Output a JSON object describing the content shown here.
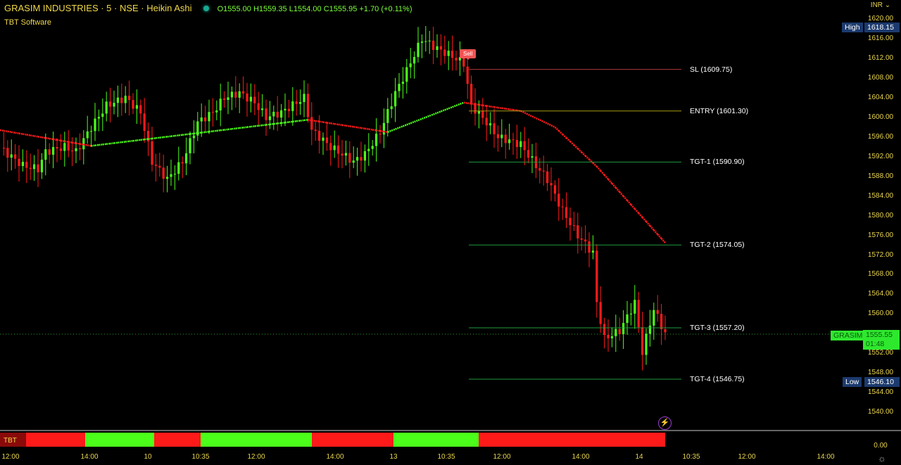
{
  "header": {
    "title": "GRASIM INDUSTRIES · 5 · NSE · Heikin Ashi",
    "open": "O1555.00",
    "high": "H1559.35",
    "low": "L1554.00",
    "close": "C1555.95",
    "change": "+1.70 (+0.11%)",
    "subtitle": "TBT Software"
  },
  "price_axis": {
    "currency": "INR ⌄",
    "ticks": [
      "1620.00",
      "1616.00",
      "1612.00",
      "1608.00",
      "1604.00",
      "1600.00",
      "1596.00",
      "1592.00",
      "1588.00",
      "1584.00",
      "1580.00",
      "1576.00",
      "1572.00",
      "1568.00",
      "1564.00",
      "1560.00",
      "1552.00",
      "1548.00",
      "1544.00",
      "1540.00"
    ],
    "high_label": "High",
    "high_value": "1618.15",
    "low_label": "Low",
    "low_value": "1546.10",
    "symbol_label": "GRASIM",
    "last_price": "1555.55",
    "countdown": "01:48",
    "indicator_value": "0.00"
  },
  "signal": {
    "label": "Sell"
  },
  "levels": [
    {
      "label": "SL (1609.75)",
      "price": 1609.75,
      "color": "#b03a3a"
    },
    {
      "label": "ENTRY (1601.30)",
      "price": 1601.3,
      "color": "#a89a10"
    },
    {
      "label": "TGT-1 (1590.90)",
      "price": 1590.9,
      "color": "#1f9a3e"
    },
    {
      "label": "TGT-2 (1574.05)",
      "price": 1574.05,
      "color": "#1f9a3e"
    },
    {
      "label": "TGT-3 (1557.20)",
      "price": 1557.2,
      "color": "#1f9a3e"
    },
    {
      "label": "TGT-4 (1546.75)",
      "price": 1546.75,
      "color": "#1f9a3e"
    }
  ],
  "time_axis": [
    "12:00",
    "14:00",
    "10",
    "10:35",
    "12:00",
    "14:00",
    "13",
    "10:35",
    "12:00",
    "14:00",
    "14",
    "10:35",
    "12:00",
    "14:00"
  ],
  "indicator": {
    "label": "TBT",
    "segments": [
      "down",
      "up",
      "down",
      "up",
      "down",
      "up",
      "down"
    ]
  },
  "colors": {
    "up": "#4cff1a",
    "down": "#ff1a1a",
    "background": "#000000",
    "text": "#e8d44d"
  },
  "chart_data": {
    "type": "candlestick",
    "price_range": [
      1536,
      1622
    ],
    "price_path": [
      [
        0,
        1593.8
      ],
      [
        6,
        1590.2
      ],
      [
        10,
        1589.5
      ],
      [
        12,
        1593
      ],
      [
        17,
        1594
      ],
      [
        20,
        1593
      ],
      [
        24,
        1598
      ],
      [
        28,
        1602.4
      ],
      [
        33,
        1604
      ],
      [
        37,
        1601
      ],
      [
        40,
        1591
      ],
      [
        44,
        1587.4
      ],
      [
        48,
        1591
      ],
      [
        52,
        1599
      ],
      [
        56,
        1601
      ],
      [
        59,
        1604
      ],
      [
        63,
        1605
      ],
      [
        67,
        1603
      ],
      [
        70,
        1600
      ],
      [
        74,
        1601
      ],
      [
        80,
        1604
      ],
      [
        82,
        1597.4
      ],
      [
        87,
        1594
      ],
      [
        93,
        1591
      ],
      [
        96,
        1592.5
      ],
      [
        100,
        1597
      ],
      [
        104,
        1605
      ],
      [
        107,
        1609.5
      ],
      [
        111,
        1616
      ],
      [
        115,
        1614
      ],
      [
        119,
        1612.4
      ],
      [
        122,
        1611
      ],
      [
        124,
        1602.4
      ],
      [
        128,
        1599
      ],
      [
        131,
        1596
      ],
      [
        137,
        1594.5
      ],
      [
        141,
        1590.2
      ],
      [
        144,
        1587.4
      ],
      [
        148,
        1581
      ],
      [
        152,
        1576
      ],
      [
        156,
        1572.4
      ],
      [
        157,
        1562.3
      ],
      [
        159,
        1555
      ],
      [
        163,
        1556.6
      ],
      [
        167,
        1562.3
      ],
      [
        169,
        1552.3
      ],
      [
        172,
        1561
      ],
      [
        175,
        1556
      ]
    ],
    "moving_average": [
      [
        0,
        1597.4,
        "down"
      ],
      [
        24,
        1594.2,
        "up"
      ],
      [
        81,
        1599.5,
        "down"
      ],
      [
        102,
        1597,
        "up"
      ],
      [
        122,
        1603,
        "down"
      ],
      [
        137,
        1601.3,
        "down"
      ],
      [
        146,
        1598,
        "down"
      ],
      [
        157,
        1590,
        "down"
      ],
      [
        175,
        1574.5,
        "down"
      ]
    ]
  }
}
